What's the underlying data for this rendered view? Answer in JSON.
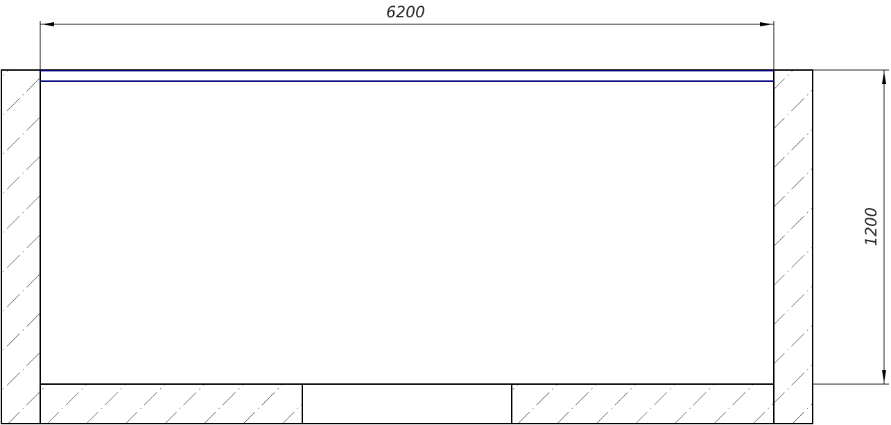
{
  "drawing": {
    "dimensions": {
      "width_label": "6200",
      "height_label": "1200"
    },
    "colors": {
      "wall_outline": "#000000",
      "window_line": "#000080",
      "hatch": "#000000"
    }
  }
}
